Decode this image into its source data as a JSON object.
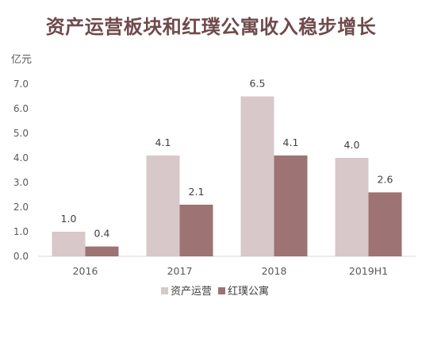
{
  "chart_data": {
    "type": "bar",
    "title": "资产运营板块和红璞公寓收入稳步增长",
    "ylabel": "亿元",
    "categories": [
      "2016",
      "2017",
      "2018",
      "2019H1"
    ],
    "series": [
      {
        "name": "资产运营",
        "values": [
          1.0,
          4.1,
          6.5,
          4.0
        ],
        "color": "#d8c8c9"
      },
      {
        "name": "红璞公寓",
        "values": [
          0.4,
          2.1,
          4.1,
          2.6
        ],
        "color": "#9e7373"
      }
    ],
    "data_labels": [
      [
        "1.0",
        "4.1",
        "6.5",
        "4.0"
      ],
      [
        "0.4",
        "2.1",
        "4.1",
        "2.6"
      ]
    ],
    "y_ticks": [
      "0.0",
      "1.0",
      "2.0",
      "3.0",
      "4.0",
      "5.0",
      "6.0",
      "7.0"
    ],
    "ylim": [
      0,
      7
    ],
    "grid": false,
    "legend_position": "bottom",
    "title_color": "#6f4a4c"
  }
}
